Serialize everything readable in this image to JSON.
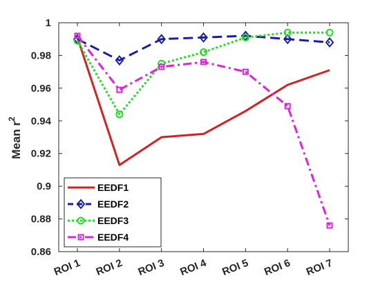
{
  "chart_data": {
    "type": "line",
    "title": "",
    "xlabel": "",
    "ylabel": "Mean r",
    "ylabel_superscript": "2",
    "categories": [
      "ROI 1",
      "ROI 2",
      "ROI 3",
      "ROI 4",
      "ROI 5",
      "ROI 6",
      "ROI 7"
    ],
    "ylim": [
      0.86,
      1.0
    ],
    "yticks": [
      0.86,
      0.88,
      0.9,
      0.92,
      0.94,
      0.96,
      0.98,
      1
    ],
    "ytick_labels": [
      "0.86",
      "0.88",
      "0.9",
      "0.92",
      "0.94",
      "0.96",
      "0.98",
      "1"
    ],
    "grid": false,
    "legend_position": "bottom-left",
    "series": [
      {
        "name": "EEDF1",
        "values": [
          0.991,
          0.913,
          0.93,
          0.932,
          0.946,
          0.962,
          0.971
        ],
        "color": "#d62020",
        "style": "solid",
        "marker": "none"
      },
      {
        "name": "EEDF2",
        "values": [
          0.99,
          0.977,
          0.99,
          0.991,
          0.992,
          0.99,
          0.988
        ],
        "color": "#1a1aad",
        "style": "dashed",
        "marker": "diamond"
      },
      {
        "name": "EEDF3",
        "values": [
          0.989,
          0.944,
          0.975,
          0.982,
          0.991,
          0.994,
          0.994
        ],
        "color": "#22dd22",
        "style": "dotted",
        "marker": "circle"
      },
      {
        "name": "EEDF4",
        "values": [
          0.992,
          0.959,
          0.973,
          0.976,
          0.97,
          0.949,
          0.876
        ],
        "color": "#e020e0",
        "style": "dashdot",
        "marker": "square"
      }
    ]
  }
}
